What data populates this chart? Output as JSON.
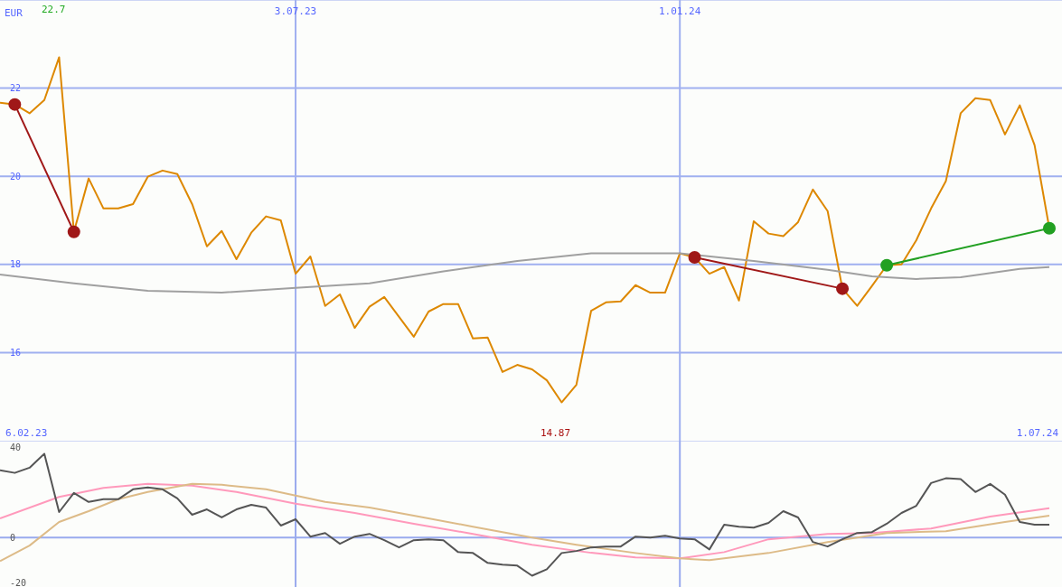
{
  "chart_data": [
    {
      "type": "line",
      "ylabel": "EUR",
      "x": [
        "2023-02-13",
        "2023-02-20",
        "2023-02-27",
        "2023-03-06",
        "2023-03-13",
        "2023-03-20",
        "2023-03-27",
        "2023-04-03",
        "2023-04-10",
        "2023-04-17",
        "2023-04-24",
        "2023-05-01",
        "2023-05-08",
        "2023-05-15",
        "2023-05-22",
        "2023-05-29",
        "2023-06-05",
        "2023-06-12",
        "2023-06-19",
        "2023-06-26",
        "2023-07-03",
        "2023-07-10",
        "2023-07-17",
        "2023-07-24",
        "2023-07-31",
        "2023-08-07",
        "2023-08-14",
        "2023-08-21",
        "2023-08-28",
        "2023-09-04",
        "2023-09-11",
        "2023-09-18",
        "2023-09-25",
        "2023-10-02",
        "2023-10-09",
        "2023-10-16",
        "2023-10-23",
        "2023-10-30",
        "2023-11-06",
        "2023-11-13",
        "2023-11-20",
        "2023-11-27",
        "2023-12-04",
        "2023-12-11",
        "2023-12-18",
        "2023-12-25",
        "2024-01-01",
        "2024-01-08",
        "2024-01-15",
        "2024-01-22",
        "2024-01-29",
        "2024-02-05",
        "2024-02-12",
        "2024-02-19",
        "2024-02-26",
        "2024-03-04",
        "2024-03-11",
        "2024-03-18",
        "2024-03-25",
        "2024-04-01",
        "2024-04-08",
        "2024-04-15",
        "2024-04-22",
        "2024-04-29",
        "2024-05-06",
        "2024-05-13",
        "2024-05-20",
        "2024-05-27",
        "2024-06-03",
        "2024-06-10",
        "2024-06-17",
        "2024-06-24"
      ],
      "series": [
        {
          "color": "#dd8800",
          "values": [
            21.67,
            21.63,
            21.43,
            21.73,
            22.7,
            18.74,
            19.95,
            19.27,
            19.27,
            19.37,
            19.99,
            20.13,
            20.05,
            19.37,
            18.41,
            18.76,
            18.12,
            18.72,
            19.09,
            19.0,
            17.79,
            18.18,
            17.06,
            17.32,
            16.56,
            17.04,
            17.26,
            16.81,
            16.36,
            16.93,
            17.1,
            17.1,
            16.32,
            16.34,
            15.56,
            15.72,
            15.62,
            15.37,
            14.87,
            15.27,
            16.95,
            17.14,
            17.16,
            17.53,
            17.36,
            17.36,
            18.25,
            18.16,
            17.79,
            17.94,
            17.18,
            18.98,
            18.7,
            18.64,
            18.96,
            19.7,
            19.21,
            17.45,
            17.06,
            17.51,
            17.98,
            18.0,
            18.55,
            19.27,
            19.89,
            21.43,
            21.77,
            21.73,
            20.95,
            21.61,
            20.71,
            18.82
          ]
        },
        {
          "color": "#a0a0a0",
          "x": [
            "2023-02-13",
            "2023-03-20",
            "2023-04-24",
            "2023-05-29",
            "2023-07-03",
            "2023-08-07",
            "2023-09-11",
            "2023-10-16",
            "2023-11-20",
            "2024-01-01",
            "2024-02-05",
            "2024-03-11",
            "2024-04-01",
            "2024-04-22",
            "2024-05-13",
            "2024-06-10",
            "2024-06-24"
          ],
          "values": [
            17.77,
            17.57,
            17.4,
            17.36,
            17.47,
            17.57,
            17.84,
            18.08,
            18.25,
            18.25,
            18.08,
            17.88,
            17.73,
            17.67,
            17.71,
            17.9,
            17.94
          ]
        },
        {
          "color": "#a01818",
          "marker": "circle",
          "x": [
            "2023-02-20",
            "2023-03-20"
          ],
          "values": [
            21.63,
            18.74
          ]
        },
        {
          "color": "#a01818",
          "marker": "circle",
          "x": [
            "2024-01-08",
            "2024-03-18"
          ],
          "values": [
            18.16,
            17.45
          ]
        },
        {
          "color": "#22a022",
          "marker": "circle",
          "x": [
            "2024-04-08",
            "2024-06-24"
          ],
          "values": [
            17.98,
            18.82
          ]
        }
      ],
      "xlim": [
        "2023-02-13",
        "2024-06-30"
      ],
      "xticks": [
        {
          "value": "2023-07-03",
          "label": "3.07.23"
        },
        {
          "value": "2024-01-01",
          "label": "1.01.24"
        }
      ],
      "ylim": [
        14,
        24
      ],
      "yticks": [
        16,
        18,
        20,
        22
      ],
      "grid": true,
      "annotations": [
        "22.7",
        "14.87",
        "6.02.23",
        "1.07.24"
      ]
    },
    {
      "type": "line",
      "x": [
        "2023-02-13",
        "2023-02-20",
        "2023-02-27",
        "2023-03-06",
        "2023-03-13",
        "2023-03-20",
        "2023-03-27",
        "2023-04-03",
        "2023-04-10",
        "2023-04-17",
        "2023-04-24",
        "2023-05-01",
        "2023-05-08",
        "2023-05-15",
        "2023-05-22",
        "2023-05-29",
        "2023-06-05",
        "2023-06-12",
        "2023-06-19",
        "2023-06-26",
        "2023-07-03",
        "2023-07-10",
        "2023-07-17",
        "2023-07-24",
        "2023-07-31",
        "2023-08-07",
        "2023-08-14",
        "2023-08-21",
        "2023-08-28",
        "2023-09-04",
        "2023-09-11",
        "2023-09-18",
        "2023-09-25",
        "2023-10-02",
        "2023-10-09",
        "2023-10-16",
        "2023-10-23",
        "2023-10-30",
        "2023-11-06",
        "2023-11-13",
        "2023-11-20",
        "2023-11-27",
        "2023-12-04",
        "2023-12-11",
        "2023-12-18",
        "2023-12-25",
        "2024-01-01",
        "2024-01-08",
        "2024-01-15",
        "2024-01-22",
        "2024-01-29",
        "2024-02-05",
        "2024-02-12",
        "2024-02-19",
        "2024-02-26",
        "2024-03-04",
        "2024-03-11",
        "2024-03-18",
        "2024-03-25",
        "2024-04-01",
        "2024-04-08",
        "2024-04-15",
        "2024-04-22",
        "2024-04-29",
        "2024-05-06",
        "2024-05-13",
        "2024-05-20",
        "2024-05-27",
        "2024-06-03",
        "2024-06-10",
        "2024-06-17",
        "2024-06-24"
      ],
      "series": [
        {
          "color": "#ff99bb",
          "x": [
            "2023-02-13",
            "2023-03-13",
            "2023-04-03",
            "2023-04-24",
            "2023-05-15",
            "2023-06-05",
            "2023-07-03",
            "2023-07-31",
            "2023-08-28",
            "2023-09-25",
            "2023-10-23",
            "2023-11-20",
            "2023-12-11",
            "2024-01-01",
            "2024-01-22",
            "2024-02-12",
            "2024-03-11",
            "2024-04-01",
            "2024-04-29",
            "2024-05-27",
            "2024-06-24"
          ],
          "values": [
            8.5,
            18,
            22,
            23.8,
            23,
            20.2,
            15,
            10.9,
            6.1,
            1.6,
            -3.2,
            -6.8,
            -8.9,
            -9.3,
            -6.5,
            -0.8,
            1.6,
            2,
            4,
            9.3,
            13
          ]
        },
        {
          "color": "#ddbb88",
          "x": [
            "2023-02-13",
            "2023-02-27",
            "2023-03-13",
            "2023-03-27",
            "2023-04-10",
            "2023-04-24",
            "2023-05-15",
            "2023-05-29",
            "2023-06-19",
            "2023-07-17",
            "2023-08-07",
            "2023-08-28",
            "2023-09-25",
            "2023-10-23",
            "2023-11-13",
            "2023-12-11",
            "2024-01-01",
            "2024-01-15",
            "2024-02-12",
            "2024-03-11",
            "2024-04-08",
            "2024-05-06",
            "2024-06-03",
            "2024-06-24"
          ],
          "values": [
            -10.5,
            -3.6,
            6.9,
            11.7,
            17,
            20.2,
            23.8,
            23.4,
            21.4,
            15.8,
            13.3,
            9.7,
            4.8,
            0,
            -3.2,
            -6.9,
            -9.3,
            -10.1,
            -6.9,
            -2,
            2,
            2.8,
            6.9,
            9.7
          ]
        },
        {
          "color": "#555555",
          "values": [
            29.9,
            28.7,
            31,
            37.2,
            11.3,
            19.8,
            15.8,
            17,
            17,
            21.4,
            22.2,
            21.4,
            17.4,
            10.1,
            12.5,
            8.9,
            12.5,
            14.5,
            13.3,
            5.3,
            8.1,
            0.4,
            2,
            -2.8,
            0.4,
            1.6,
            -1.2,
            -4.4,
            -1.2,
            -0.8,
            -1.2,
            -6.5,
            -6.9,
            -11.3,
            -12.1,
            -12.5,
            -17,
            -14.1,
            -6.9,
            -6,
            -4.4,
            -4,
            -4,
            0.4,
            0,
            0.8,
            -0.4,
            -0.8,
            -5.3,
            5.7,
            4.8,
            4.4,
            6.5,
            11.7,
            8.9,
            -2,
            -4,
            -0.8,
            2,
            2.4,
            6.1,
            10.9,
            14.1,
            24.2,
            26.3,
            25.9,
            20.2,
            23.8,
            19,
            6.9,
            5.7,
            5.7
          ]
        }
      ],
      "xlim": [
        "2023-02-13",
        "2024-06-30"
      ],
      "ylim": [
        -22,
        43
      ],
      "yticks": [
        40,
        0,
        -20
      ],
      "ref_lines": [
        {
          "axis": "y",
          "value": 0,
          "color": "#99aaee"
        },
        {
          "axis": "x",
          "value": "2023-07-03",
          "color": "#99aaee"
        },
        {
          "axis": "x",
          "value": "2024-01-01",
          "color": "#99aaee"
        }
      ]
    }
  ]
}
